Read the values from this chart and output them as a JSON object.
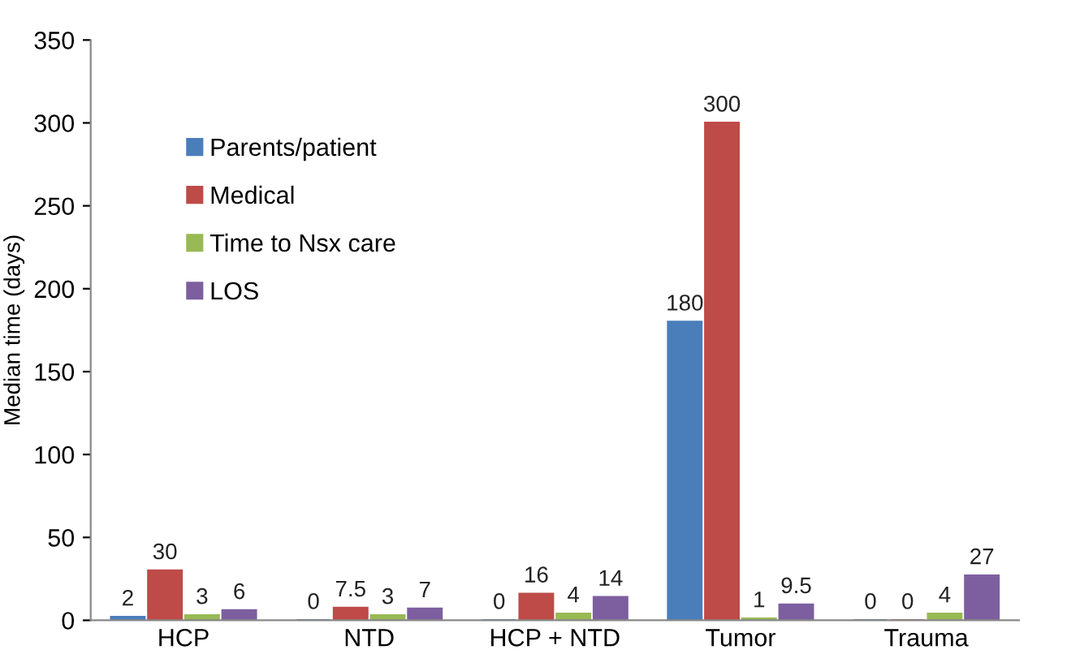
{
  "chart_data": {
    "type": "bar",
    "ylabel": "Median time (days)",
    "categories": [
      "HCP",
      "NTD",
      "HCP + NTD",
      "Tumor",
      "Trauma"
    ],
    "series": [
      {
        "name": "Parents/patient",
        "color": "#4a7ebb",
        "values": [
          2,
          0,
          0,
          180,
          0
        ]
      },
      {
        "name": "Medical",
        "color": "#be4b48",
        "values": [
          30,
          7.5,
          16,
          300,
          0
        ]
      },
      {
        "name": "Time to Nsx care",
        "color": "#98b954",
        "values": [
          3,
          3,
          4,
          1,
          4
        ]
      },
      {
        "name": "LOS",
        "color": "#7d5fa0",
        "values": [
          6,
          7,
          14,
          9.5,
          27
        ]
      }
    ],
    "ylim": [
      0,
      350
    ],
    "yticks": [
      0,
      50,
      100,
      150,
      200,
      250,
      300,
      350
    ],
    "grid": false,
    "legend": "top left",
    "data_labels": true
  }
}
